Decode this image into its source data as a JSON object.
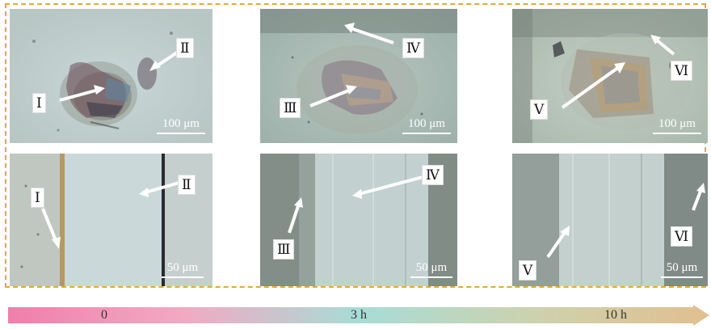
{
  "colors": {
    "frame": "#e6a92e",
    "timeline_start": "#f07fab",
    "timeline_mid": "#a8dcd6",
    "timeline_end": "#e2bf8e",
    "arrow": "#ffffff"
  },
  "panels": {
    "top_0": {
      "labels": [
        "Ⅰ",
        "Ⅱ"
      ],
      "scale": "100 μm"
    },
    "top_3h": {
      "labels": [
        "Ⅳ",
        "Ⅲ"
      ],
      "scale": "100 μm"
    },
    "top_10h": {
      "labels": [
        "Ⅵ",
        "Ⅴ"
      ],
      "scale": "100 μm"
    },
    "bottom_0": {
      "labels": [
        "Ⅰ",
        "Ⅱ"
      ],
      "scale": "50 μm"
    },
    "bottom_3h": {
      "labels": [
        "Ⅳ",
        "Ⅲ"
      ],
      "scale": "50 μm"
    },
    "bottom_10h": {
      "labels": [
        "Ⅵ",
        "Ⅴ"
      ],
      "scale": "50 μm"
    }
  },
  "timeline": {
    "labels": [
      "0",
      "3 h",
      "10 h"
    ]
  }
}
